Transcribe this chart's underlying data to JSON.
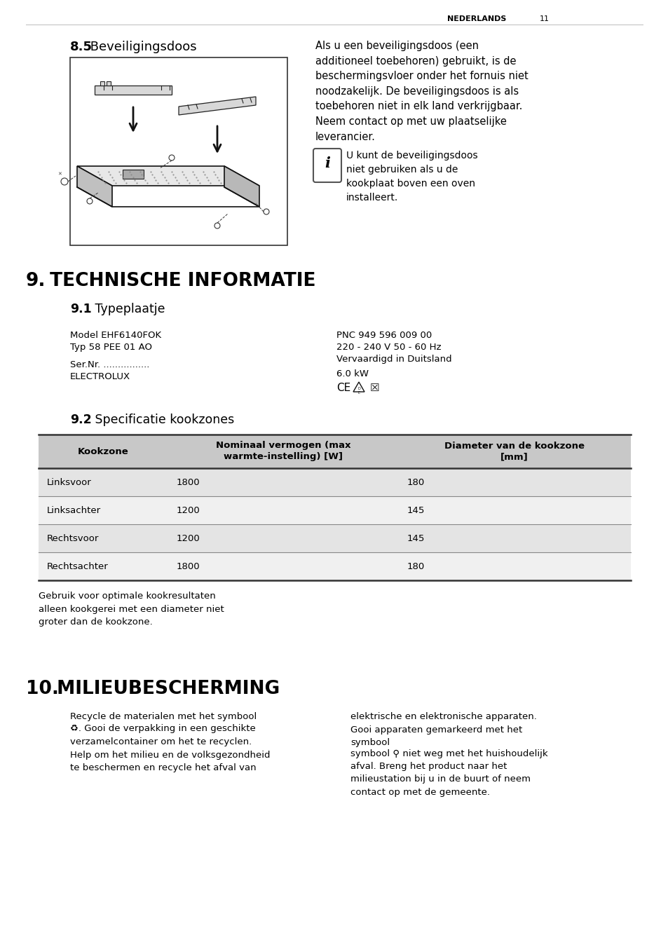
{
  "page_number": "11",
  "language_header": "NEDERLANDS",
  "section_8_5_bold": "8.5",
  "section_8_5_text": " Beveiligingsdoos",
  "section_8_5_body": "Als u een beveiligingsdoos (een\nadditioneel toebehoren) gebruikt, is de\nbeschermingsvloer onder het fornuis niet\nnoodzakelijk. De beveiligingsdoos is als\ntoebehoren niet in elk land verkrijgbaar.\nNeem contact op met uw plaatselijke\nleverancier.",
  "info_box_text": "U kunt de beveiligingsdoos\nniet gebruiken als u de\nkookplaat boven een oven\ninstalleert.",
  "section_9_bold": "9.",
  "section_9_text": " TECHNISCHE INFORMATIE",
  "section_9_1_bold": "9.1",
  "section_9_1_text": " Typeplaatje",
  "spec_left_1": "Model EHF6140FOK",
  "spec_left_2": "Typ 58 PEE 01 AO",
  "spec_left_3": "Ser.Nr. ................",
  "spec_left_4": "ELECTROLUX",
  "spec_right_1": "PNC 949 596 009 00",
  "spec_right_2": "220 - 240 V 50 - 60 Hz",
  "spec_right_3": "Vervaardigd in Duitsland",
  "spec_right_4": "6.0 kW",
  "section_9_2_bold": "9.2",
  "section_9_2_text": " Specificatie kookzones",
  "table_headers": [
    "Kookzone",
    "Nominaal vermogen (max\nwarmte-instelling) [W]",
    "Diameter van de kookzone\n[mm]"
  ],
  "table_rows": [
    [
      "Linksvoor",
      "1800",
      "180"
    ],
    [
      "Linksachter",
      "1200",
      "145"
    ],
    [
      "Rechtsvoor",
      "1200",
      "145"
    ],
    [
      "Rechtsachter",
      "1800",
      "180"
    ]
  ],
  "table_note": "Gebruik voor optimale kookresultaten\nalleen kookgerei met een diameter niet\ngroter dan de kookzone.",
  "section_10_bold": "10.",
  "section_10_text": " MILIEUBESCHERMING",
  "section_10_left_1": "Recycle de materialen met het symbool",
  "section_10_left_2": ". Gooi de verpakking in een geschikte\nverzamelcontainer om het te recyclen.\nHelp om het milieu en de volksgezondheid\nte beschermen en recycle het afval van",
  "section_10_right_1": "elektrische en elektronische apparaten.\nGooi apparaten gemarkeerd met het\nsymbool",
  "section_10_right_2": " niet weg met het huishoudelijk\nafval. Breng het product naar het\nmilieustation bij u in de buurt of neem\ncontact op met de gemeente.",
  "bg_color": "#ffffff",
  "text_color": "#000000",
  "table_header_bg": "#c8c8c8",
  "table_row_bg1": "#e4e4e4",
  "table_row_bg2": "#f0f0f0"
}
